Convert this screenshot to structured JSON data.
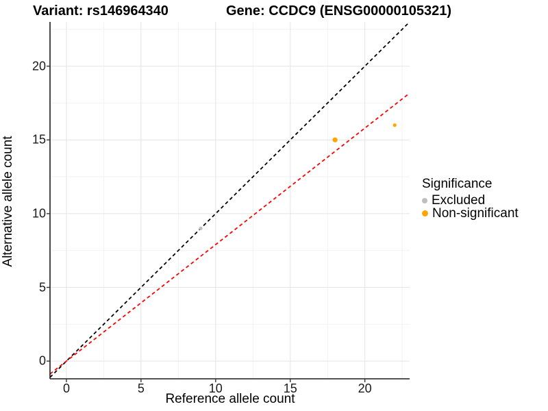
{
  "chart_data": {
    "type": "scatter",
    "titles": {
      "left": "Variant: rs146964340",
      "right": "Gene: CCDC9 (ENSG00000105321)"
    },
    "xlabel": "Reference allele count",
    "ylabel": "Alternative allele count",
    "xlim": [
      -1.1,
      23.0
    ],
    "ylim": [
      -1.2,
      23.0
    ],
    "x_major_ticks": [
      0,
      5,
      10,
      15,
      20
    ],
    "y_major_ticks": [
      0,
      5,
      10,
      15,
      20
    ],
    "x_minor_ticks": [
      2.5,
      7.5,
      12.5,
      17.5,
      22.5
    ],
    "y_minor_ticks": [
      2.5,
      7.5,
      12.5,
      17.5,
      22.5
    ],
    "grid": true,
    "series": [
      {
        "name": "Excluded",
        "color": "#BEBEBE",
        "points": [
          {
            "x": 9,
            "y": 9,
            "r": 2.6
          }
        ]
      },
      {
        "name": "Non-significant",
        "color": "#FFA500",
        "points": [
          {
            "x": 18,
            "y": 15,
            "r": 3.6
          },
          {
            "x": 22,
            "y": 16,
            "r": 2.6
          }
        ]
      }
    ],
    "lines": [
      {
        "name": "identity-line",
        "slope": 1,
        "intercept": 0,
        "color": "#000000",
        "dash": "5,4"
      },
      {
        "name": "regression-line",
        "slope": 0.79,
        "intercept": 0,
        "color": "#FF0000",
        "dash": "5,4"
      }
    ],
    "legend": {
      "title": "Significance",
      "position": "right",
      "items": [
        {
          "label": "Excluded",
          "color": "#BEBEBE",
          "size": 8
        },
        {
          "label": "Non-significant",
          "color": "#FFA500",
          "size": 9
        }
      ]
    },
    "colors": {
      "grid_major": "#E4E4E4",
      "grid_minor": "#F2F2F2",
      "axis_line": "#1a1a1a",
      "tick_mark": "#333333",
      "panel_background": "#FFFFFF"
    }
  }
}
